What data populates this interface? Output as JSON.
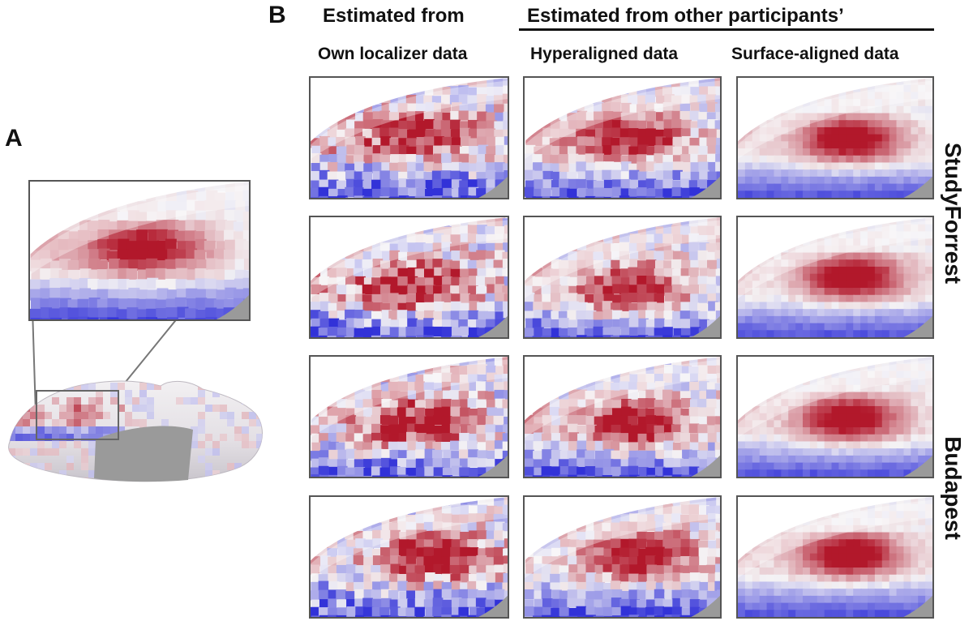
{
  "panel_a": {
    "letter": "A",
    "inset_description": "zoomed cortical surface map",
    "brain_description": "inflated cortical surface"
  },
  "panel_b": {
    "letter": "B",
    "header_left": "Estimated from",
    "header_right": "Estimated from other participants’",
    "columns": [
      {
        "label": "Own localizer data"
      },
      {
        "label": "Hyperaligned data"
      },
      {
        "label": "Surface-aligned data"
      }
    ],
    "row_groups": [
      {
        "label": "StudyForrest"
      },
      {
        "label": "Budapest"
      }
    ]
  },
  "colors": {
    "positive_red": "#b2182b",
    "negative_blue": "#3232d8",
    "neutral": "#f4f2f4",
    "masked_gray": "#9a9a9a",
    "frame": "#555555"
  }
}
